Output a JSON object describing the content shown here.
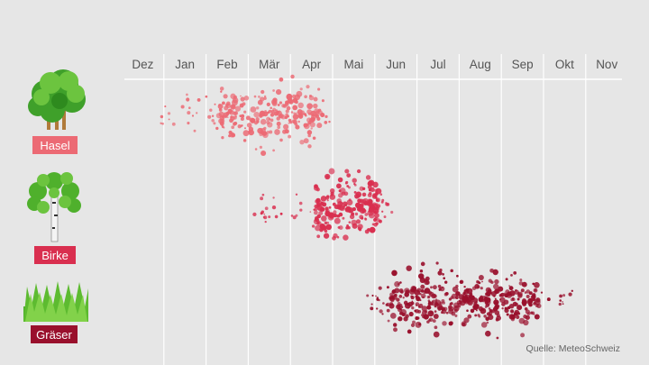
{
  "chart_data": {
    "type": "scatter",
    "title": "",
    "source": "Quelle: MeteoSchweiz",
    "months": [
      "Dez",
      "Jan",
      "Feb",
      "Mär",
      "Apr",
      "Mai",
      "Jun",
      "Jul",
      "Aug",
      "Sep",
      "Okt",
      "Nov"
    ],
    "x_unit": "month index (0 = Dez, 11 = Nov)",
    "grid": "vertical lines between months",
    "series": [
      {
        "name": "Hasel",
        "color": "#ec6a74",
        "label_bg": "#ec6a74",
        "icon": "hazel-tree-icon",
        "season_months": [
          0.4,
          4.5
        ],
        "peak_month": 3.0,
        "core_range": [
          1.8,
          4.3
        ],
        "point_count": 260
      },
      {
        "name": "Birke",
        "color": "#d92f4f",
        "label_bg": "#d92f4f",
        "icon": "birch-tree-icon",
        "season_months": [
          2.5,
          6.0
        ],
        "peak_month": 4.8,
        "core_range": [
          4.1,
          5.6
        ],
        "point_count": 240
      },
      {
        "name": "Gräser",
        "color": "#99102c",
        "label_bg": "#99102c",
        "icon": "grass-icon",
        "season_months": [
          5.3,
          10.2
        ],
        "peak_month": 7.3,
        "core_range": [
          5.8,
          9.4
        ],
        "point_count": 420
      }
    ]
  }
}
